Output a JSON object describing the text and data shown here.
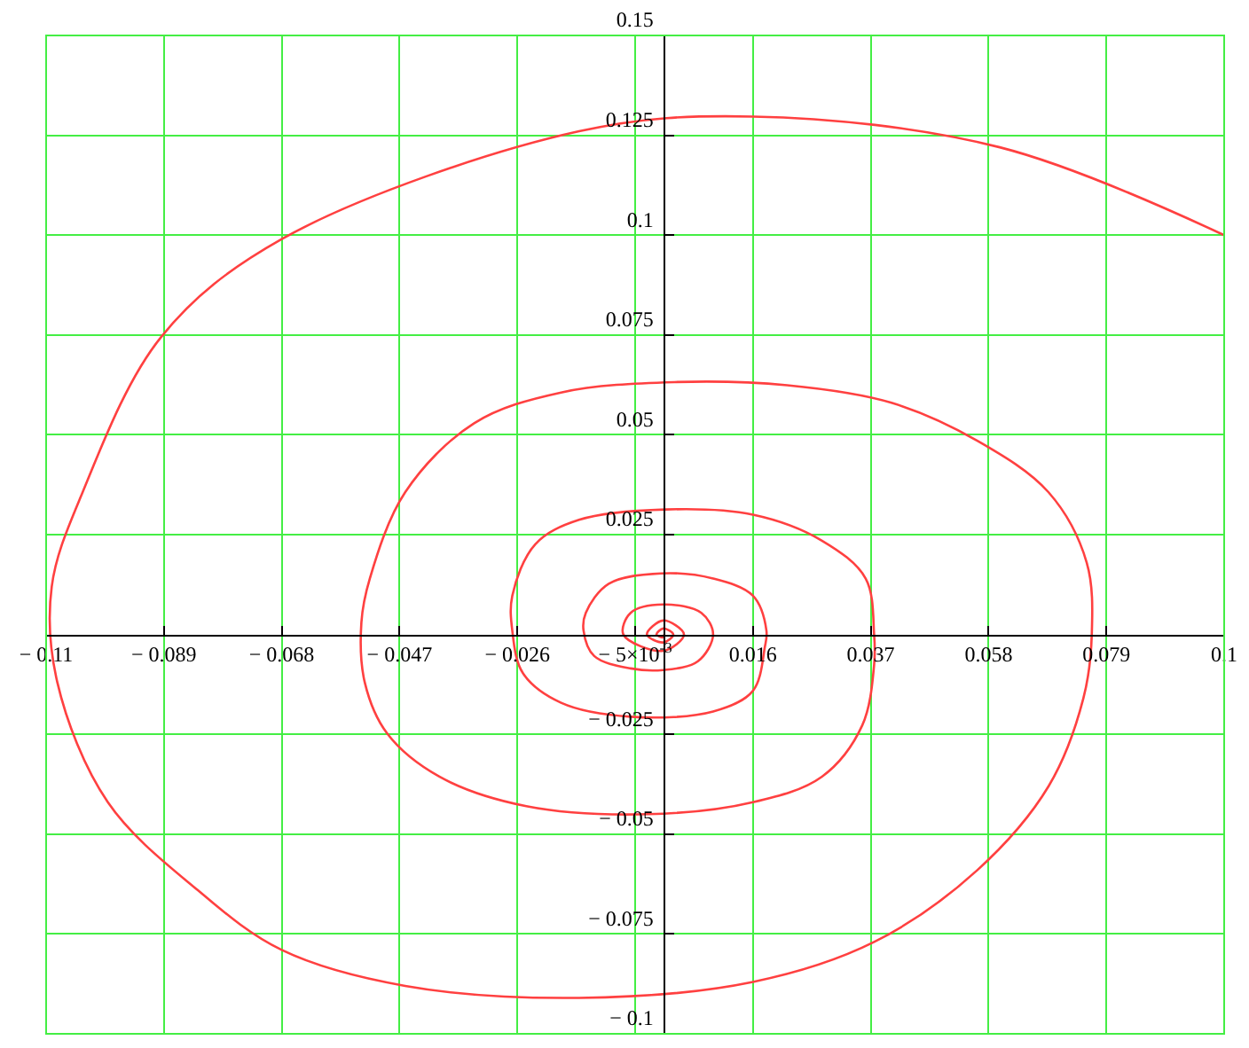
{
  "chart_data": {
    "type": "line",
    "grid": true,
    "marker": "none",
    "line_style": "solid",
    "xlim": [
      -0.11,
      0.1
    ],
    "ylim": [
      -0.1,
      0.15
    ],
    "xticks": [
      {
        "value": -0.11,
        "label": "− 0.11"
      },
      {
        "value": -0.089,
        "label": "− 0.089"
      },
      {
        "value": -0.068,
        "label": "− 0.068"
      },
      {
        "value": -0.047,
        "label": "− 0.047"
      },
      {
        "value": -0.026,
        "label": "− 0.026"
      },
      {
        "value": -0.005,
        "label": "− 5×10$^{-3}$"
      },
      0.016,
      0.037,
      0.058,
      0.079,
      0.1
    ],
    "yticks": [
      {
        "value": -0.1,
        "label": "− 0.1"
      },
      {
        "value": -0.075,
        "label": "− 0.075"
      },
      {
        "value": -0.05,
        "label": "− 0.05"
      },
      {
        "value": -0.025,
        "label": "− 0.025"
      },
      0.025,
      0.05,
      0.075,
      0.1,
      0.125,
      0.15
    ],
    "series": [
      {
        "color": "#ff4040",
        "x": [
          0.1,
          0.06,
          0.016,
          -0.015,
          -0.068,
          -0.0895,
          -0.1035,
          -0.109,
          -0.108,
          -0.099,
          -0.083,
          -0.068,
          -0.046,
          -0.015,
          0.016,
          0.0376,
          0.056,
          0.0687,
          0.0749,
          0.0764,
          0.0755,
          0.0687,
          0.056,
          0.0407,
          0.0221,
          0.002,
          -0.0182,
          -0.0337,
          -0.046,
          -0.0523,
          -0.0538,
          -0.0532,
          -0.0492,
          -0.0399,
          -0.0244,
          -0.0027,
          0.016,
          0.0283,
          0.0355,
          0.0376,
          0.0376,
          0.0361,
          0.0283,
          0.016,
          0.0004,
          -0.015,
          -0.0228,
          -0.0269,
          -0.0269,
          -0.025,
          -0.0182,
          -0.0058,
          0.0089,
          0.016,
          0.0181,
          0.0184,
          0.016,
          0.0089,
          -0.0004,
          -0.0097,
          -0.0138,
          -0.0142,
          -0.0123,
          -0.0058,
          0,
          0.0062,
          0.0089,
          0.0068,
          0,
          -0.0058,
          -0.0071,
          0,
          0.0037,
          0,
          -0.0029,
          0,
          0.0018,
          0,
          -0.0012,
          0,
          0
        ],
        "values": [
          0.1,
          0.122,
          0.1297,
          0.126,
          0.099,
          0.0745,
          0.0356,
          0.012,
          -0.012,
          -0.042,
          -0.064,
          -0.079,
          -0.088,
          -0.091,
          -0.087,
          -0.077,
          -0.059,
          -0.038,
          -0.016,
          0,
          0.018,
          0.0356,
          0.0485,
          0.058,
          0.0624,
          0.0632,
          0.0606,
          0.0529,
          0.0356,
          0.014,
          0.003,
          -0.012,
          -0.0248,
          -0.0356,
          -0.043,
          -0.045,
          -0.042,
          -0.0356,
          -0.0227,
          -0.0076,
          0,
          0.014,
          0.0235,
          0.03,
          0.0313,
          0.0287,
          0.0226,
          0.0097,
          0.001,
          -0.0097,
          -0.0171,
          -0.0206,
          -0.0193,
          -0.0141,
          -0.0033,
          0.001,
          0.0097,
          0.014,
          0.0153,
          0.0127,
          0.0054,
          0.001,
          -0.0054,
          -0.0085,
          -0.0089,
          -0.0067,
          0,
          0.0054,
          0.0075,
          0.0054,
          0,
          -0.0041,
          0,
          0.0035,
          0,
          -0.002,
          0,
          0.0015,
          0,
          -0.0007,
          0
        ]
      }
    ]
  }
}
